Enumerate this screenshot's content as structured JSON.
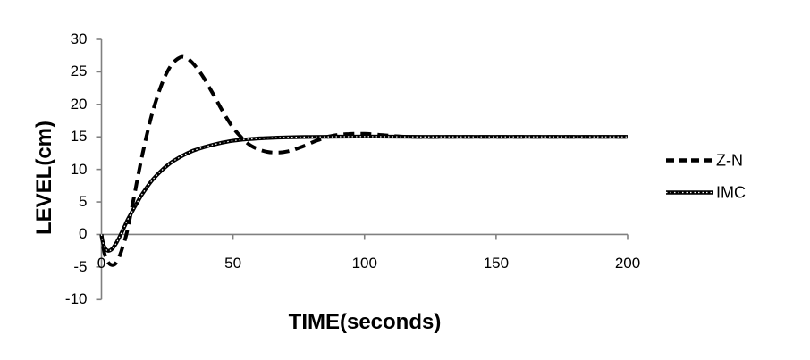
{
  "chart_data": {
    "type": "line",
    "title": "",
    "xlabel": "TIME(seconds)",
    "ylabel": "LEVEL(cm)",
    "xlim": [
      0,
      200
    ],
    "ylim": [
      -10,
      30
    ],
    "xticks": [
      0,
      50,
      100,
      150,
      200
    ],
    "yticks": [
      30,
      25,
      20,
      15,
      10,
      5,
      0,
      -5,
      -10
    ],
    "grid": false,
    "legend_position": "right",
    "axis_color": "#808080",
    "series": [
      {
        "name": "Z-N",
        "style": "dashed",
        "color": "#000000",
        "points": [
          [
            0,
            0
          ],
          [
            0.5,
            -1.6
          ],
          [
            1.2,
            -3.0
          ],
          [
            2,
            -3.9
          ],
          [
            3,
            -4.5
          ],
          [
            4,
            -4.7
          ],
          [
            5,
            -4.6
          ],
          [
            6,
            -4.1
          ],
          [
            7,
            -3.2
          ],
          [
            8,
            -2.0
          ],
          [
            9,
            -0.7
          ],
          [
            10,
            0.9
          ],
          [
            11,
            2.9
          ],
          [
            12,
            5.0
          ],
          [
            13,
            7.1
          ],
          [
            14,
            9.2
          ],
          [
            15,
            11.2
          ],
          [
            16,
            13.1
          ],
          [
            17,
            14.9
          ],
          [
            18,
            16.6
          ],
          [
            19,
            18.2
          ],
          [
            20,
            19.6
          ],
          [
            21.5,
            21.5
          ],
          [
            23,
            23.2
          ],
          [
            24.5,
            24.6
          ],
          [
            26,
            25.7
          ],
          [
            27.5,
            26.5
          ],
          [
            29,
            27.0
          ],
          [
            30.5,
            27.3
          ],
          [
            32,
            27.2
          ],
          [
            33.5,
            26.8
          ],
          [
            35,
            26.2
          ],
          [
            37,
            25.2
          ],
          [
            39,
            24.0
          ],
          [
            41,
            22.6
          ],
          [
            43,
            21.2
          ],
          [
            45,
            19.7
          ],
          [
            47,
            18.3
          ],
          [
            49,
            17.0
          ],
          [
            51,
            15.9
          ],
          [
            53,
            15.0
          ],
          [
            55,
            14.2
          ],
          [
            57,
            13.6
          ],
          [
            59,
            13.2
          ],
          [
            61,
            12.9
          ],
          [
            63,
            12.7
          ],
          [
            65,
            12.6
          ],
          [
            67,
            12.6
          ],
          [
            69,
            12.65
          ],
          [
            71,
            12.8
          ],
          [
            73,
            13.0
          ],
          [
            75,
            13.3
          ],
          [
            77,
            13.6
          ],
          [
            79,
            13.95
          ],
          [
            81,
            14.3
          ],
          [
            83,
            14.6
          ],
          [
            85,
            14.9
          ],
          [
            87,
            15.1
          ],
          [
            89,
            15.25
          ],
          [
            91,
            15.35
          ],
          [
            94,
            15.45
          ],
          [
            97,
            15.48
          ],
          [
            100,
            15.47
          ],
          [
            103,
            15.4
          ],
          [
            106,
            15.3
          ],
          [
            109,
            15.2
          ],
          [
            112,
            15.1
          ],
          [
            115,
            15.03
          ],
          [
            118,
            15.0
          ],
          [
            124,
            14.97
          ],
          [
            130,
            15.0
          ],
          [
            140,
            15.0
          ],
          [
            150,
            15.0
          ],
          [
            160,
            15.0
          ],
          [
            170,
            15.0
          ],
          [
            180,
            15.0
          ],
          [
            190,
            15.0
          ],
          [
            200,
            15.0
          ]
        ]
      },
      {
        "name": "IMC",
        "style": "solid",
        "color": "#000000",
        "points": [
          [
            0,
            0
          ],
          [
            0.4,
            -1.0
          ],
          [
            1,
            -1.8
          ],
          [
            1.7,
            -2.3
          ],
          [
            2.5,
            -2.5
          ],
          [
            3.3,
            -2.45
          ],
          [
            4.2,
            -2.15
          ],
          [
            5.2,
            -1.6
          ],
          [
            6.2,
            -0.9
          ],
          [
            7.3,
            0
          ],
          [
            8.5,
            1.0
          ],
          [
            10,
            2.3
          ],
          [
            11.5,
            3.4
          ],
          [
            13,
            4.5
          ],
          [
            15,
            5.9
          ],
          [
            17,
            7.1
          ],
          [
            19,
            8.2
          ],
          [
            21,
            9.1
          ],
          [
            23,
            9.9
          ],
          [
            25,
            10.6
          ],
          [
            27,
            11.2
          ],
          [
            29,
            11.7
          ],
          [
            31,
            12.15
          ],
          [
            33,
            12.55
          ],
          [
            35,
            12.9
          ],
          [
            38,
            13.3
          ],
          [
            41,
            13.65
          ],
          [
            44,
            13.95
          ],
          [
            47,
            14.2
          ],
          [
            50,
            14.4
          ],
          [
            53,
            14.55
          ],
          [
            56,
            14.65
          ],
          [
            59,
            14.73
          ],
          [
            62,
            14.8
          ],
          [
            66,
            14.87
          ],
          [
            70,
            14.92
          ],
          [
            75,
            14.96
          ],
          [
            80,
            14.99
          ],
          [
            85,
            15.01
          ],
          [
            90,
            15.03
          ],
          [
            100,
            15.05
          ],
          [
            110,
            15.03
          ],
          [
            120,
            15.0
          ],
          [
            130,
            15.0
          ],
          [
            140,
            15.0
          ],
          [
            150,
            15.0
          ],
          [
            160,
            15.0
          ],
          [
            170,
            15.0
          ],
          [
            180,
            15.0
          ],
          [
            190,
            15.0
          ],
          [
            200,
            15.0
          ]
        ]
      }
    ]
  }
}
